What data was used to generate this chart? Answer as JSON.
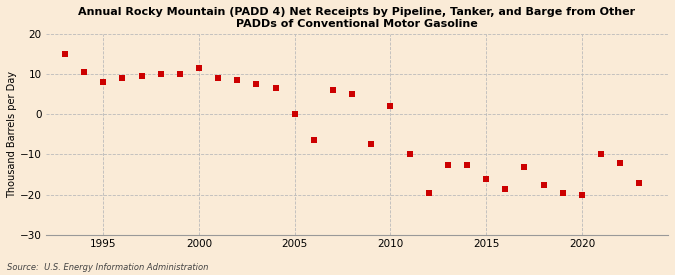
{
  "title": "Annual Rocky Mountain (PADD 4) Net Receipts by Pipeline, Tanker, and Barge from Other\nPADDs of Conventional Motor Gasoline",
  "ylabel": "Thousand Barrels per Day",
  "source": "Source:  U.S. Energy Information Administration",
  "background_color": "#faebd7",
  "marker_color": "#cc0000",
  "years": [
    1993,
    1994,
    1995,
    1996,
    1997,
    1998,
    1999,
    2000,
    2001,
    2002,
    2003,
    2004,
    2005,
    2006,
    2007,
    2008,
    2009,
    2010,
    2011,
    2012,
    2013,
    2014,
    2015,
    2016,
    2017,
    2018,
    2019,
    2020,
    2021,
    2022,
    2023
  ],
  "values": [
    15.0,
    10.5,
    8.2,
    9.0,
    9.5,
    10.0,
    10.0,
    11.5,
    9.0,
    8.5,
    7.5,
    6.5,
    0.0,
    -6.5,
    6.0,
    5.0,
    -7.5,
    2.0,
    -10.0,
    -19.5,
    -12.5,
    -12.5,
    -16.0,
    -18.5,
    -13.0,
    -17.5,
    -19.5,
    -20.0,
    -10.0,
    -12.0,
    -17.0
  ],
  "ylim": [
    -30,
    20
  ],
  "yticks": [
    -30,
    -20,
    -10,
    0,
    10,
    20
  ],
  "xticks": [
    1995,
    2000,
    2005,
    2010,
    2015,
    2020
  ],
  "xlim": [
    1992.0,
    2024.5
  ],
  "grid_color": "#bbbbbb",
  "marker_size": 4.5
}
